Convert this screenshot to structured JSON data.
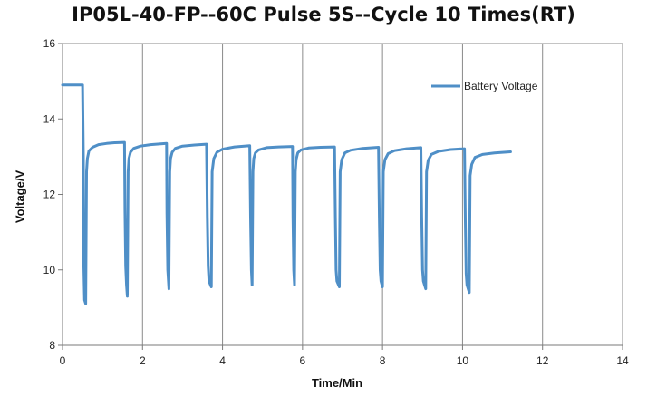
{
  "chart_data": {
    "type": "line",
    "title": "IP05L-40-FP--60C Pulse 5S--Cycle 10 Times(RT)",
    "xlabel": "Time/Min",
    "ylabel": "Voltage/V",
    "xlim": [
      0,
      14
    ],
    "ylim": [
      8,
      16
    ],
    "xticks": [
      0,
      2,
      4,
      6,
      8,
      10,
      12,
      14
    ],
    "yticks": [
      8,
      10,
      12,
      14,
      16
    ],
    "grid": "vertical",
    "legend": "top-right",
    "series": [
      {
        "name": "Battery Voltage",
        "color": "#4f8fc7",
        "x": [
          0,
          0.5,
          0.52,
          0.53,
          0.55,
          0.58,
          0.6,
          0.62,
          0.66,
          0.75,
          0.9,
          1.1,
          1.3,
          1.55,
          1.56,
          1.58,
          1.6,
          1.62,
          1.64,
          1.66,
          1.7,
          1.78,
          1.95,
          2.2,
          2.6,
          2.61,
          2.63,
          2.66,
          2.68,
          2.7,
          2.74,
          2.82,
          3.0,
          3.3,
          3.6,
          3.62,
          3.64,
          3.66,
          3.72,
          3.74,
          3.78,
          3.86,
          4.0,
          4.3,
          4.68,
          4.7,
          4.72,
          4.74,
          4.76,
          4.78,
          4.82,
          4.9,
          5.1,
          5.4,
          5.75,
          5.76,
          5.78,
          5.8,
          5.82,
          5.84,
          5.88,
          5.96,
          6.15,
          6.45,
          6.8,
          6.82,
          6.84,
          6.86,
          6.92,
          6.94,
          6.98,
          7.06,
          7.2,
          7.5,
          7.9,
          7.92,
          7.94,
          7.96,
          8.0,
          8.02,
          8.06,
          8.14,
          8.3,
          8.6,
          8.96,
          8.98,
          9.0,
          9.02,
          9.08,
          9.1,
          9.14,
          9.22,
          9.4,
          9.7,
          10.05,
          10.07,
          10.09,
          10.11,
          10.17,
          10.19,
          10.23,
          10.31,
          10.5,
          10.8,
          11.2
        ],
        "values": [
          14.9,
          14.9,
          13.0,
          10.2,
          9.2,
          9.1,
          12.6,
          12.95,
          13.15,
          13.25,
          13.32,
          13.35,
          13.37,
          13.38,
          11.6,
          10.1,
          9.6,
          9.3,
          12.6,
          12.95,
          13.12,
          13.22,
          13.28,
          13.32,
          13.35,
          11.5,
          10.0,
          9.5,
          12.6,
          12.95,
          13.12,
          13.22,
          13.28,
          13.31,
          13.33,
          11.4,
          10.1,
          9.7,
          9.55,
          12.6,
          12.95,
          13.12,
          13.2,
          13.26,
          13.29,
          11.4,
          10.0,
          9.6,
          12.6,
          12.95,
          13.1,
          13.18,
          13.24,
          13.26,
          13.27,
          11.4,
          10.0,
          9.6,
          12.6,
          12.92,
          13.1,
          13.18,
          13.23,
          13.25,
          13.26,
          11.4,
          10.0,
          9.7,
          9.55,
          12.6,
          12.92,
          13.1,
          13.17,
          13.22,
          13.25,
          11.4,
          10.0,
          9.7,
          9.55,
          12.6,
          12.92,
          13.08,
          13.16,
          13.21,
          13.24,
          11.4,
          10.0,
          9.7,
          9.5,
          12.6,
          12.9,
          13.06,
          13.14,
          13.19,
          13.21,
          11.3,
          9.9,
          9.6,
          9.4,
          12.5,
          12.8,
          12.98,
          13.06,
          13.1,
          13.13
        ]
      }
    ]
  }
}
